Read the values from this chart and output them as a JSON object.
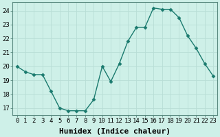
{
  "x": [
    0,
    1,
    2,
    3,
    4,
    5,
    6,
    7,
    8,
    9,
    10,
    11,
    12,
    13,
    14,
    15,
    16,
    17,
    18,
    19,
    20,
    21,
    22,
    23
  ],
  "y": [
    20.0,
    19.6,
    19.4,
    19.4,
    18.2,
    17.0,
    16.8,
    16.8,
    16.8,
    17.6,
    20.0,
    18.9,
    20.2,
    21.8,
    22.8,
    22.8,
    24.2,
    24.1,
    24.1,
    23.5,
    22.2,
    21.3,
    20.2,
    19.3
  ],
  "line_color": "#1a7a6e",
  "marker": "D",
  "marker_size": 2.5,
  "bg_color": "#cef0e8",
  "grid_color": "#b8ddd6",
  "plot_bg": "#cef0e8",
  "xlabel": "Humidex (Indice chaleur)",
  "xlabel_fontsize": 8,
  "ylabel_ticks": [
    17,
    18,
    19,
    20,
    21,
    22,
    23,
    24
  ],
  "xlim": [
    -0.5,
    23.5
  ],
  "ylim": [
    16.5,
    24.6
  ],
  "xtick_labels": [
    "0",
    "1",
    "2",
    "3",
    "4",
    "5",
    "6",
    "7",
    "8",
    "9",
    "10",
    "11",
    "12",
    "13",
    "14",
    "15",
    "16",
    "17",
    "18",
    "19",
    "20",
    "21",
    "22",
    "23"
  ],
  "tick_fontsize": 6.5,
  "spine_color": "#5a8a80",
  "line_width": 1.0
}
